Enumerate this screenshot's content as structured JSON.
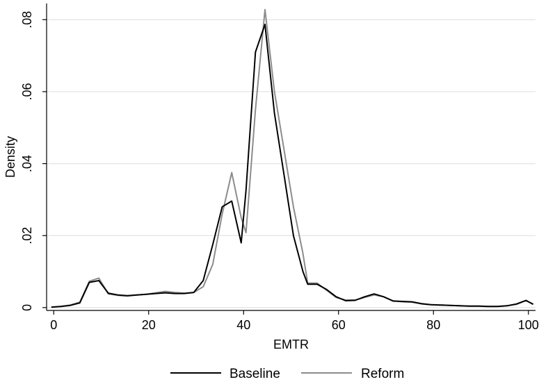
{
  "chart_data": {
    "type": "line",
    "xlabel": "EMTR",
    "ylabel": "Density",
    "xlim": [
      -1.5,
      101.5
    ],
    "ylim": [
      -0.0008,
      0.0845
    ],
    "x_ticks": [
      0,
      20,
      40,
      60,
      80,
      100
    ],
    "x_tick_labels": [
      "0",
      "20",
      "40",
      "60",
      "80",
      "100"
    ],
    "y_ticks": [
      0,
      0.02,
      0.04,
      0.06,
      0.08
    ],
    "y_tick_labels": [
      "0",
      ".02",
      ".04",
      ".06",
      ".08"
    ],
    "grid": true,
    "legend_position": "bottom",
    "series": [
      {
        "name": "Baseline",
        "color": "#000000",
        "x": [
          -0.5,
          1.5,
          3.5,
          5.5,
          7.5,
          9.5,
          11.5,
          13.5,
          15.5,
          17.5,
          19.5,
          21.5,
          23.5,
          25.5,
          27.5,
          29.5,
          31.5,
          33.5,
          35.5,
          37.5,
          39.5,
          40.5,
          42.5,
          44.5,
          46.5,
          48.5,
          50.5,
          52.5,
          53.5,
          55.5,
          57.5,
          59.5,
          61.5,
          63.5,
          65.5,
          67.5,
          69.5,
          71.5,
          73.5,
          75.5,
          77.5,
          79.5,
          81.5,
          83.5,
          85.5,
          87.5,
          89.5,
          91.5,
          93.5,
          95.5,
          97.5,
          99.5,
          101
        ],
        "y": [
          0.0001,
          0.0003,
          0.0006,
          0.0013,
          0.007,
          0.0075,
          0.004,
          0.0035,
          0.0033,
          0.0035,
          0.0037,
          0.0039,
          0.0041,
          0.0039,
          0.0039,
          0.0042,
          0.0075,
          0.0175,
          0.028,
          0.0296,
          0.018,
          0.0325,
          0.071,
          0.0787,
          0.054,
          0.037,
          0.02,
          0.01,
          0.0065,
          0.0065,
          0.005,
          0.003,
          0.0019,
          0.002,
          0.003,
          0.0038,
          0.003,
          0.0018,
          0.0017,
          0.0016,
          0.0011,
          0.0008,
          0.0007,
          0.0006,
          0.0005,
          0.0004,
          0.0004,
          0.0003,
          0.0003,
          0.0005,
          0.001,
          0.002,
          0.0009
        ]
      },
      {
        "name": "Reform",
        "color": "#8c8c8c",
        "x": [
          -0.5,
          1.5,
          3.5,
          5.5,
          7.5,
          9.5,
          11.5,
          13.5,
          15.5,
          17.5,
          19.5,
          21.5,
          23.5,
          25.5,
          27.5,
          29.5,
          31.5,
          33.5,
          35.5,
          37.5,
          39.5,
          40.5,
          42.5,
          44.5,
          46.5,
          48.5,
          50.5,
          52.5,
          53.5,
          55.5,
          57.5,
          59.5,
          61.5,
          63.5,
          65.5,
          67.5,
          69.5,
          71.5,
          73.5,
          75.5,
          77.5,
          79.5,
          81.5,
          83.5,
          85.5,
          87.5,
          89.5,
          91.5,
          93.5,
          95.5,
          97.5,
          99.5,
          101
        ],
        "y": [
          0.0001,
          0.0003,
          0.0007,
          0.0015,
          0.0073,
          0.0082,
          0.0038,
          0.0034,
          0.0032,
          0.0035,
          0.0037,
          0.0041,
          0.0045,
          0.0042,
          0.004,
          0.0042,
          0.0058,
          0.012,
          0.026,
          0.0375,
          0.025,
          0.0208,
          0.055,
          0.0828,
          0.06,
          0.044,
          0.028,
          0.015,
          0.0068,
          0.0068,
          0.0048,
          0.0028,
          0.0021,
          0.0021,
          0.0028,
          0.0035,
          0.003,
          0.0019,
          0.0016,
          0.0015,
          0.001,
          0.0008,
          0.0007,
          0.0006,
          0.0005,
          0.0004,
          0.0004,
          0.0003,
          0.0003,
          0.0005,
          0.0009,
          0.0019,
          0.001
        ]
      }
    ]
  }
}
